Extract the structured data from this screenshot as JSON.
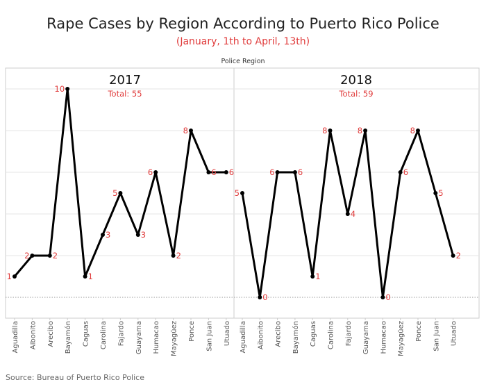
{
  "title": "Rape Cases by Region According to Puerto Rico Police",
  "subtitle": "(January, 1th to April, 13th)",
  "panel_header": "Police Region",
  "source": "Source: Bureau of Puerto Rico Police",
  "colors": {
    "line": "#000000",
    "label": "#e03b3b",
    "grid": "#e6e6e6",
    "axis": "#cccccc"
  },
  "chart_data": {
    "type": "line",
    "xlabel": "Police Region",
    "ylim": [
      0,
      10
    ],
    "grid": true,
    "categories": [
      "Aguadilla",
      "Aibonito",
      "Arecibo",
      "Bayamón",
      "Caguas",
      "Carolina",
      "Fajardo",
      "Guayama",
      "Humacao",
      "Mayagüez",
      "Ponce",
      "San Juan",
      "Utuado"
    ],
    "panels": [
      {
        "name": "2017",
        "total_label": "Total: 55",
        "categories": [
          "Aguadilla",
          "Aibonito",
          "Arecibo",
          "Bayamón",
          "Caguas",
          "Carolina",
          "Fajardo",
          "Guayama",
          "Humacao",
          "Mayagüez",
          "Ponce",
          "San Juan",
          "Utuado"
        ],
        "values": [
          1,
          2,
          2,
          10,
          1,
          3,
          5,
          3,
          6,
          2,
          8,
          6,
          6
        ]
      },
      {
        "name": "2018",
        "total_label": "Total: 59",
        "categories": [
          "Aguadilla",
          "Aibonito",
          "Arecibo",
          "Bayamón",
          "Caguas",
          "Carolina",
          "Fajardo",
          "Guayama",
          "Humacao",
          "Mayagüez",
          "Ponce",
          "San Juan",
          "Utuado"
        ],
        "values": [
          5,
          0,
          6,
          6,
          1,
          8,
          4,
          8,
          0,
          6,
          8,
          5,
          2
        ]
      }
    ]
  }
}
